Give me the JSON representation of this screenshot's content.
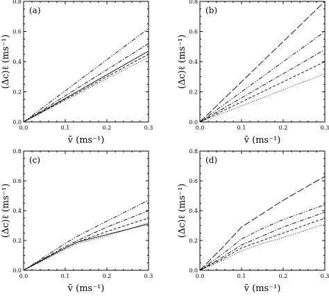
{
  "chart_data": [
    {
      "type": "line",
      "panel_label": "(a)",
      "xlabel": "v̄ (ms⁻¹)",
      "ylabel": "(Δc)ℓ (ms⁻¹)",
      "xlim": [
        0,
        0.3
      ],
      "ylim": [
        0,
        0.8
      ],
      "xticks": [
        "0.0",
        "0.1",
        "0.2",
        "0.3"
      ],
      "yticks": [
        "0.0",
        "0.2",
        "0.4",
        "0.6",
        "0.8"
      ],
      "grid": false,
      "series": [
        {
          "style": "dotted",
          "x": [
            0,
            0.3
          ],
          "y": [
            0,
            0.43
          ]
        },
        {
          "style": "dashed",
          "x": [
            0,
            0.3
          ],
          "y": [
            0,
            0.45
          ]
        },
        {
          "style": "solid",
          "x": [
            0,
            0.3
          ],
          "y": [
            0,
            0.47
          ]
        },
        {
          "style": "dashdot",
          "x": [
            0,
            0.3
          ],
          "y": [
            0,
            0.52
          ]
        },
        {
          "style": "dashdotdot",
          "x": [
            0,
            0.3
          ],
          "y": [
            0,
            0.62
          ]
        }
      ]
    },
    {
      "type": "line",
      "panel_label": "(b)",
      "xlabel": "v̄ (ms⁻¹)",
      "ylabel": "(Δc)ℓ (ms⁻¹)",
      "xlim": [
        0,
        0.3
      ],
      "ylim": [
        0,
        0.8
      ],
      "xticks": [
        "0.0",
        "0.1",
        "0.2",
        "0.3"
      ],
      "yticks": [
        "0.0",
        "0.2",
        "0.4",
        "0.6",
        "0.8"
      ],
      "grid": false,
      "series": [
        {
          "style": "dotted",
          "x": [
            0,
            0.3
          ],
          "y": [
            0,
            0.32
          ]
        },
        {
          "style": "dashed",
          "x": [
            0,
            0.3
          ],
          "y": [
            0,
            0.4
          ]
        },
        {
          "style": "dashdot",
          "x": [
            0,
            0.3
          ],
          "y": [
            0,
            0.48
          ]
        },
        {
          "style": "dashdotdot",
          "x": [
            0,
            0.3
          ],
          "y": [
            0,
            0.6
          ]
        },
        {
          "style": "longdash",
          "x": [
            0,
            0.3
          ],
          "y": [
            0,
            0.8
          ]
        }
      ]
    },
    {
      "type": "line",
      "panel_label": "(c)",
      "xlabel": "v̄ (ms⁻¹)",
      "ylabel": "(Δc)ℓ (ms⁻¹)",
      "xlim": [
        0,
        0.3
      ],
      "ylim": [
        0,
        0.8
      ],
      "xticks": [
        "0.0",
        "0.1",
        "0.2",
        "0.3"
      ],
      "yticks": [
        "0.0",
        "0.2",
        "0.4",
        "0.6",
        "0.8"
      ],
      "grid": false,
      "series": [
        {
          "style": "solid",
          "x": [
            0,
            0.05,
            0.1,
            0.13,
            0.2,
            0.3
          ],
          "y": [
            0,
            0.075,
            0.15,
            0.19,
            0.24,
            0.31
          ]
        },
        {
          "style": "dotted",
          "x": [
            0,
            0.05,
            0.1,
            0.13,
            0.2,
            0.3
          ],
          "y": [
            0,
            0.07,
            0.14,
            0.18,
            0.23,
            0.32
          ]
        },
        {
          "style": "dashed",
          "x": [
            0,
            0.05,
            0.1,
            0.13,
            0.2,
            0.3
          ],
          "y": [
            0,
            0.08,
            0.15,
            0.19,
            0.26,
            0.35
          ]
        },
        {
          "style": "dashdot",
          "x": [
            0,
            0.05,
            0.1,
            0.13,
            0.2,
            0.3
          ],
          "y": [
            0,
            0.08,
            0.16,
            0.2,
            0.29,
            0.4
          ]
        },
        {
          "style": "dashdotdot",
          "x": [
            0,
            0.05,
            0.1,
            0.13,
            0.2,
            0.3
          ],
          "y": [
            0,
            0.09,
            0.18,
            0.23,
            0.33,
            0.47
          ]
        }
      ]
    },
    {
      "type": "line",
      "panel_label": "(d)",
      "xlabel": "v̄ (ms⁻¹)",
      "ylabel": "(Δc)ℓ (ms⁻¹)",
      "xlim": [
        0,
        0.3
      ],
      "ylim": [
        0,
        0.8
      ],
      "xticks": [
        "0.0",
        "0.1",
        "0.2",
        "0.3"
      ],
      "yticks": [
        "0.0",
        "0.2",
        "0.4",
        "0.6",
        "0.8"
      ],
      "grid": false,
      "series": [
        {
          "style": "dotted",
          "x": [
            0,
            0.05,
            0.1,
            0.15,
            0.2,
            0.3
          ],
          "y": [
            0,
            0.06,
            0.13,
            0.18,
            0.22,
            0.31
          ]
        },
        {
          "style": "dashed",
          "x": [
            0,
            0.05,
            0.1,
            0.15,
            0.2,
            0.3
          ],
          "y": [
            0,
            0.07,
            0.15,
            0.2,
            0.25,
            0.35
          ]
        },
        {
          "style": "dashdot",
          "x": [
            0,
            0.05,
            0.1,
            0.15,
            0.2,
            0.3
          ],
          "y": [
            0,
            0.08,
            0.17,
            0.23,
            0.29,
            0.39
          ]
        },
        {
          "style": "dashdotdot",
          "x": [
            0,
            0.05,
            0.1,
            0.15,
            0.2,
            0.3
          ],
          "y": [
            0,
            0.1,
            0.21,
            0.28,
            0.34,
            0.44
          ]
        },
        {
          "style": "longdash",
          "x": [
            0,
            0.05,
            0.1,
            0.15,
            0.2,
            0.3
          ],
          "y": [
            0,
            0.14,
            0.29,
            0.38,
            0.47,
            0.63
          ]
        }
      ]
    }
  ]
}
